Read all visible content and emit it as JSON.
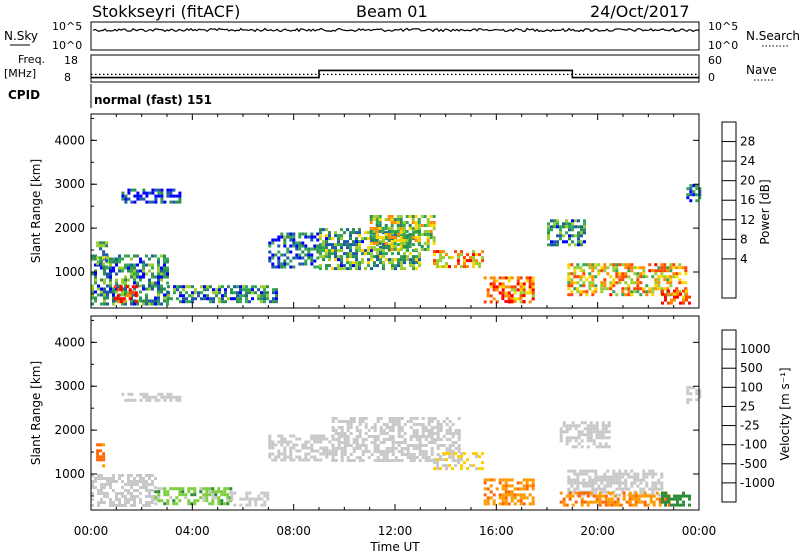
{
  "header": {
    "station": "Stokkseyri (fitACF)",
    "beam": "Beam 01",
    "date": "24/Oct/2017"
  },
  "nsky_panel": {
    "label": "N.Sky",
    "left_ticks": [
      "10^5",
      "10^0"
    ],
    "right_ticks": [
      "10^5",
      "10^0"
    ],
    "right_label": "N.Search",
    "trace_level": 0.75
  },
  "freq_panel": {
    "label_top": "Freq.",
    "label_bottom": "[MHz]",
    "left_ticks": [
      "18",
      "8"
    ],
    "right_ticks": [
      "60",
      "0"
    ],
    "right_label": "Nave",
    "freq_steps": [
      {
        "from_hour": 0.0,
        "to_hour": 9.0,
        "value": 9
      },
      {
        "from_hour": 9.0,
        "to_hour": 19.0,
        "value": 12
      },
      {
        "from_hour": 19.0,
        "to_hour": 24.0,
        "value": 9
      }
    ],
    "nave_level": 14
  },
  "cpid": {
    "label": "CPID",
    "value": "normal (fast) 151"
  },
  "time_axis": {
    "label": "Time UT",
    "ticks": [
      "00:00",
      "04:00",
      "08:00",
      "12:00",
      "16:00",
      "20:00",
      "00:00"
    ],
    "range_hours": [
      0,
      24
    ]
  },
  "chart_data": [
    {
      "type": "heatmap",
      "name": "power",
      "ylabel": "Slant Range [km]",
      "yticks": [
        "1000",
        "2000",
        "3000",
        "4000"
      ],
      "ylim": [
        180,
        4600
      ],
      "colorbar_label": "Power [dB]",
      "colorbar_ticks": [
        "28",
        "24",
        "20",
        "16",
        "12",
        "8",
        "4"
      ],
      "colorbar_colors": [
        "#ff0000",
        "#ff4500",
        "#ff8c00",
        "#ffd700",
        "#9acd32",
        "#32a852",
        "#2e8b57",
        "#1e5aa8",
        "#0000ff"
      ],
      "regions": [
        {
          "t0": 0.0,
          "t1": 3.0,
          "r0": 300,
          "r1": 1400,
          "level": 0.3
        },
        {
          "t0": 0.9,
          "t1": 1.8,
          "r0": 300,
          "r1": 700,
          "level": 0.95
        },
        {
          "t0": 0.2,
          "t1": 0.6,
          "r0": 1100,
          "r1": 1700,
          "level": 0.35
        },
        {
          "t0": 3.0,
          "t1": 7.3,
          "r0": 300,
          "r1": 700,
          "level": 0.3
        },
        {
          "t0": 7.0,
          "t1": 9.0,
          "r0": 1100,
          "r1": 1900,
          "level": 0.2
        },
        {
          "t0": 9.0,
          "t1": 13.0,
          "r0": 1100,
          "r1": 2000,
          "level": 0.35
        },
        {
          "t0": 11.0,
          "t1": 13.5,
          "r0": 1500,
          "r1": 2300,
          "level": 0.5
        },
        {
          "t0": 13.5,
          "t1": 15.5,
          "r0": 1100,
          "r1": 1500,
          "level": 0.7
        },
        {
          "t0": 15.5,
          "t1": 17.5,
          "r0": 300,
          "r1": 900,
          "level": 0.75
        },
        {
          "t0": 16.2,
          "t1": 17.1,
          "r0": 300,
          "r1": 500,
          "level": 0.98
        },
        {
          "t0": 18.0,
          "t1": 19.5,
          "r0": 1600,
          "r1": 2200,
          "level": 0.3
        },
        {
          "t0": 18.8,
          "t1": 23.5,
          "r0": 500,
          "r1": 1200,
          "level": 0.65
        },
        {
          "t0": 22.5,
          "t1": 23.6,
          "r0": 300,
          "r1": 600,
          "level": 0.85
        },
        {
          "t0": 1.2,
          "t1": 3.5,
          "r0": 2600,
          "r1": 2900,
          "level": 0.1
        },
        {
          "t0": 23.5,
          "t1": 24.0,
          "r0": 2600,
          "r1": 3000,
          "level": 0.2
        }
      ]
    },
    {
      "type": "heatmap",
      "name": "velocity",
      "ylabel": "Slant Range [km]",
      "yticks": [
        "1000",
        "2000",
        "3000",
        "4000"
      ],
      "ylim": [
        180,
        4600
      ],
      "colorbar_label": "Velocity [m s⁻¹]",
      "colorbar_ticks": [
        "1000",
        "500",
        "100",
        "25",
        "-25",
        "-100",
        "-500",
        "-1000"
      ],
      "colorbar_colors": [
        "#1e3fb0",
        "#2b7bd6",
        "#2e8b3a",
        "#7ccd3c",
        "#c8c8c8",
        "#ffd000",
        "#ff9900",
        "#ff6600",
        "#ff0000"
      ],
      "regions": [
        {
          "t0": 0.2,
          "t1": 0.5,
          "r0": 1200,
          "r1": 1700,
          "v": -700
        },
        {
          "t0": 0.0,
          "t1": 2.5,
          "r0": 300,
          "r1": 1000,
          "v": 0
        },
        {
          "t0": 2.5,
          "t1": 5.5,
          "r0": 300,
          "r1": 700,
          "v": 60
        },
        {
          "t0": 5.5,
          "t1": 7.0,
          "r0": 300,
          "r1": 600,
          "v": 0
        },
        {
          "t0": 7.0,
          "t1": 9.5,
          "r0": 1300,
          "r1": 1900,
          "v": 0
        },
        {
          "t0": 9.5,
          "t1": 14.5,
          "r0": 1300,
          "r1": 2300,
          "v": 0
        },
        {
          "t0": 13.5,
          "t1": 15.5,
          "r0": 1100,
          "r1": 1500,
          "v": -40
        },
        {
          "t0": 15.5,
          "t1": 17.5,
          "r0": 300,
          "r1": 900,
          "v": -400
        },
        {
          "t0": 18.5,
          "t1": 20.5,
          "r0": 1600,
          "r1": 2200,
          "v": 0
        },
        {
          "t0": 18.8,
          "t1": 22.5,
          "r0": 500,
          "r1": 1100,
          "v": 0
        },
        {
          "t0": 18.5,
          "t1": 22.8,
          "r0": 300,
          "r1": 600,
          "v": -450
        },
        {
          "t0": 22.5,
          "t1": 23.6,
          "r0": 300,
          "r1": 600,
          "v": 300
        },
        {
          "t0": 1.2,
          "t1": 3.5,
          "r0": 2700,
          "r1": 2850,
          "v": 0
        },
        {
          "t0": 23.5,
          "t1": 24.0,
          "r0": 2600,
          "r1": 3000,
          "v": 0
        }
      ]
    }
  ]
}
